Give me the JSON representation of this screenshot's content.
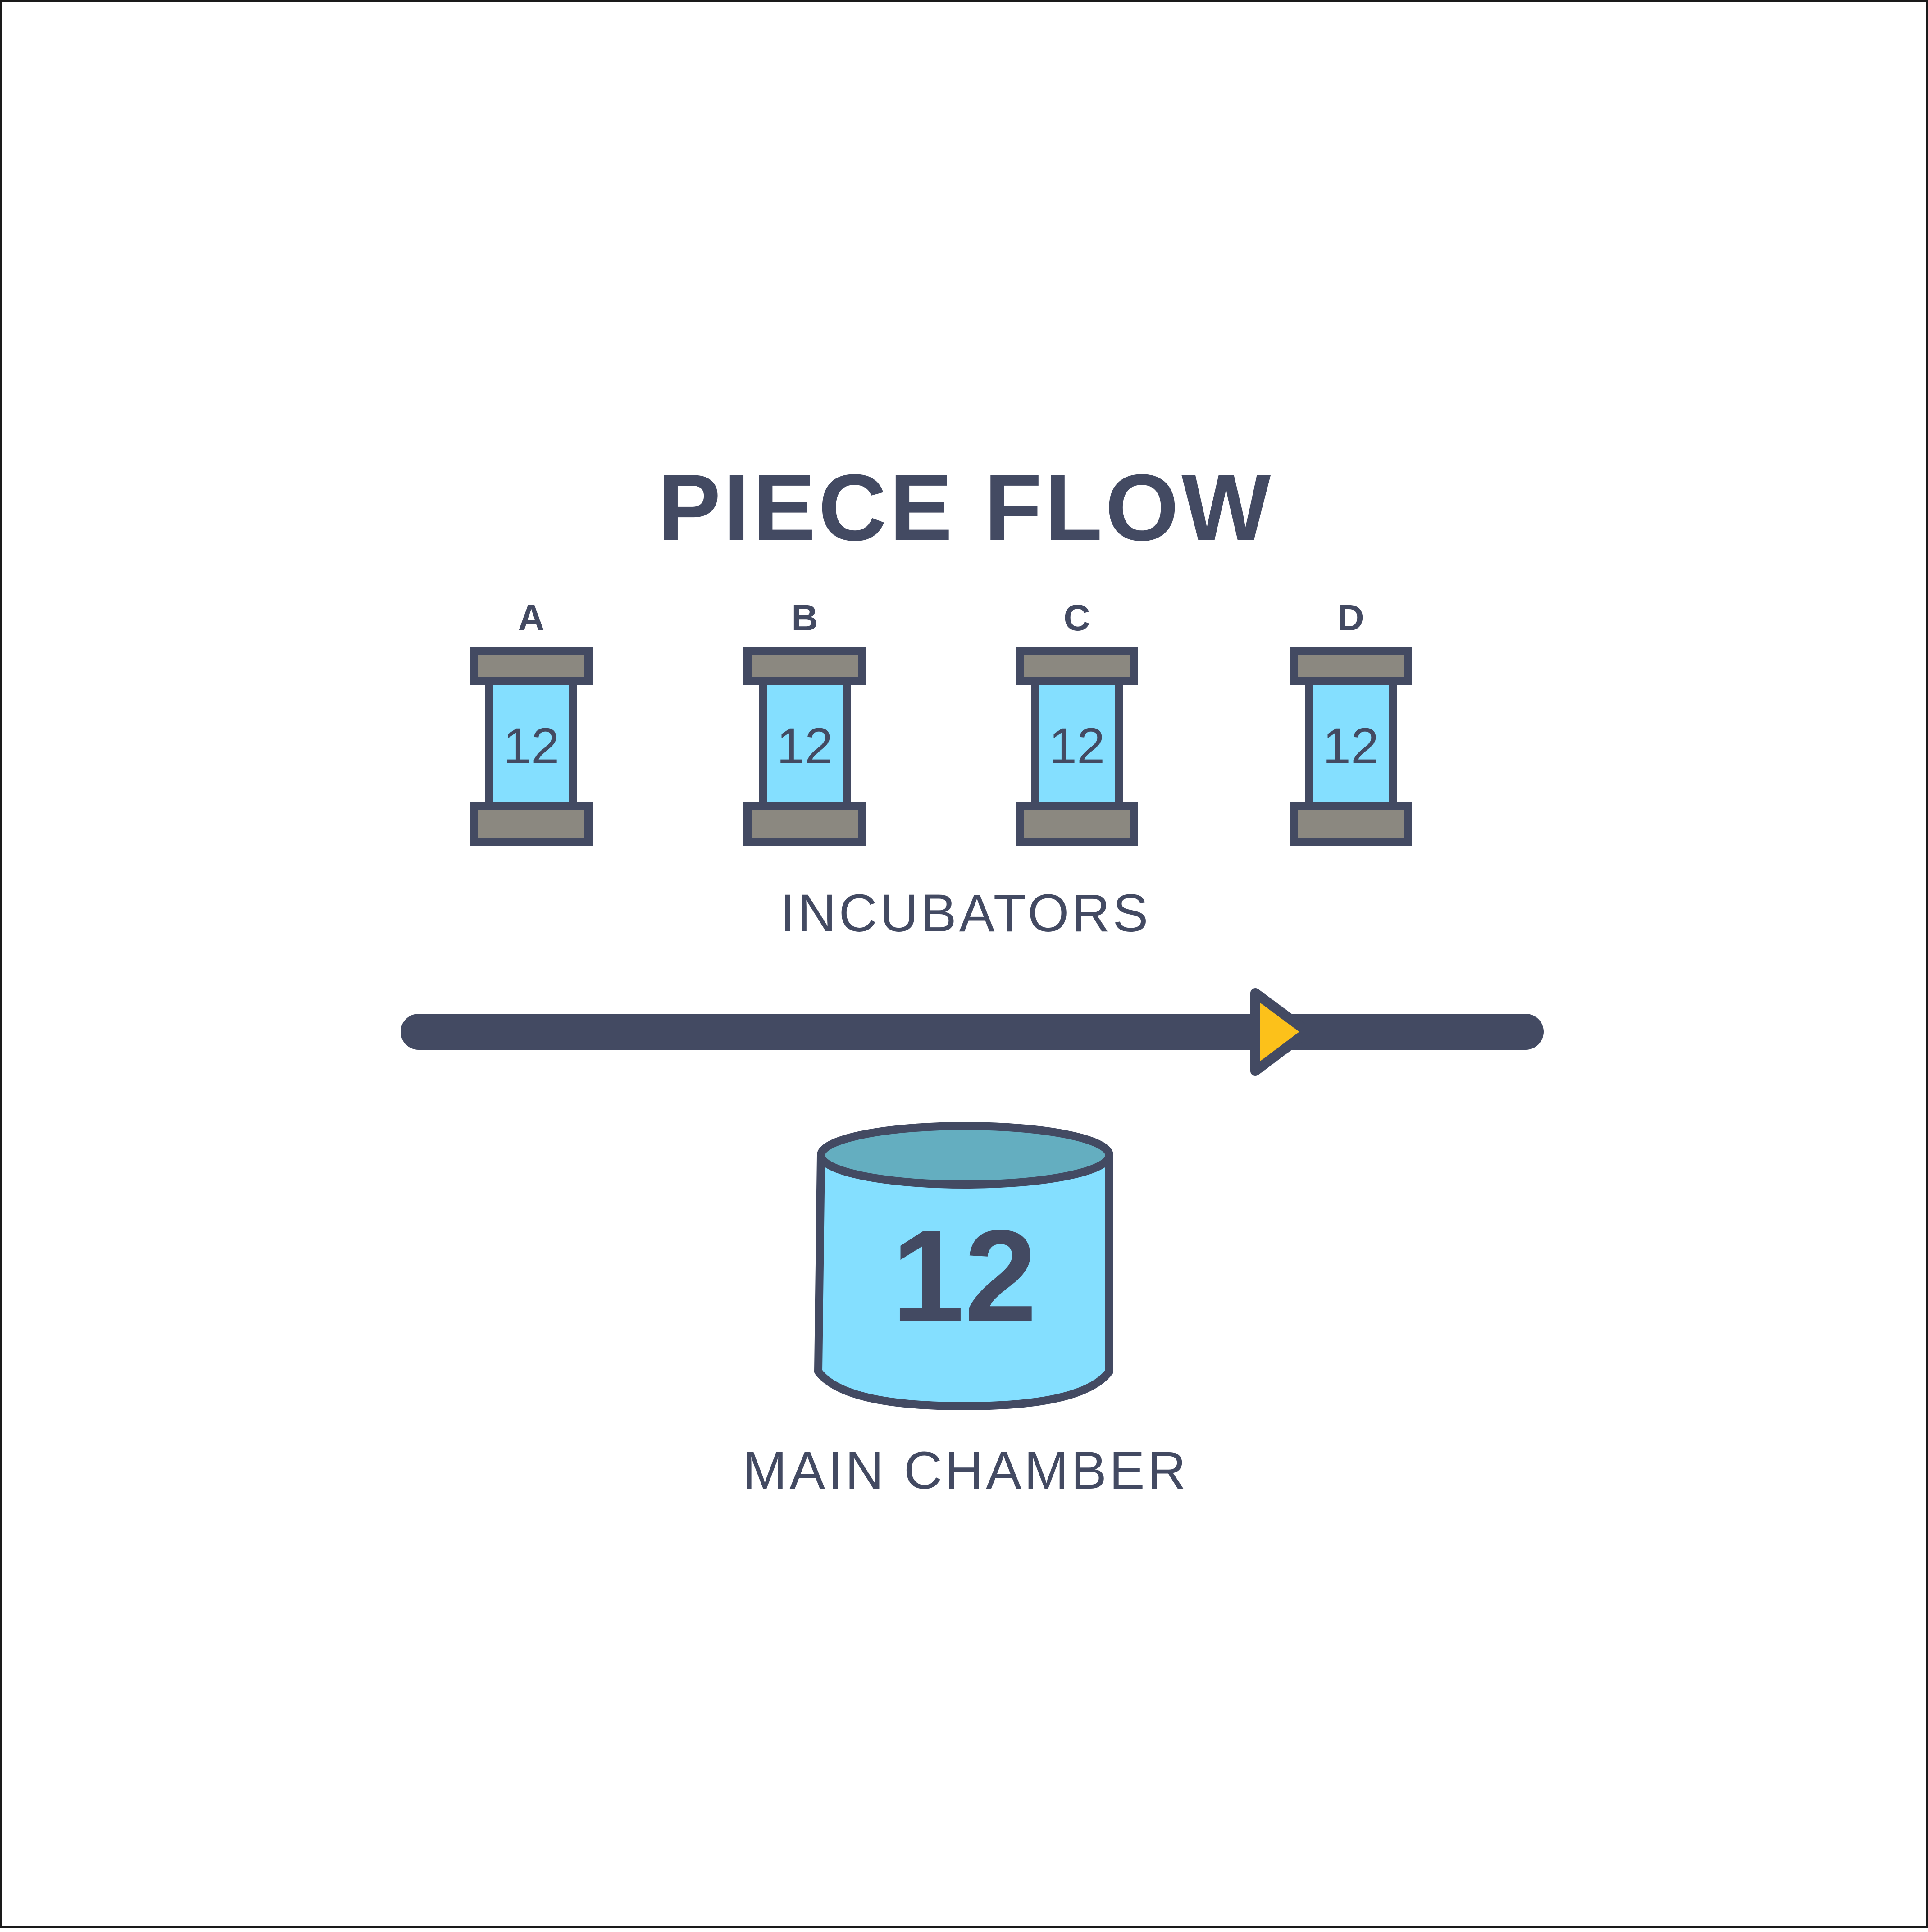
{
  "title": "PIECE FLOW",
  "incubators": [
    {
      "label": "A",
      "count": "12"
    },
    {
      "label": "B",
      "count": "12"
    },
    {
      "label": "C",
      "count": "12"
    },
    {
      "label": "D",
      "count": "12"
    }
  ],
  "incubators_label": "INCUBATORS",
  "main_chamber": {
    "count": "12",
    "label": "MAIN CHAMBER"
  },
  "colors": {
    "outline": "#434a62",
    "chamber_fill": "#84dfff",
    "chamber_top": "#64aec0",
    "cap_fill": "#8b8880",
    "arrow_fill": "#fcc11a",
    "background": "#ffffff"
  }
}
